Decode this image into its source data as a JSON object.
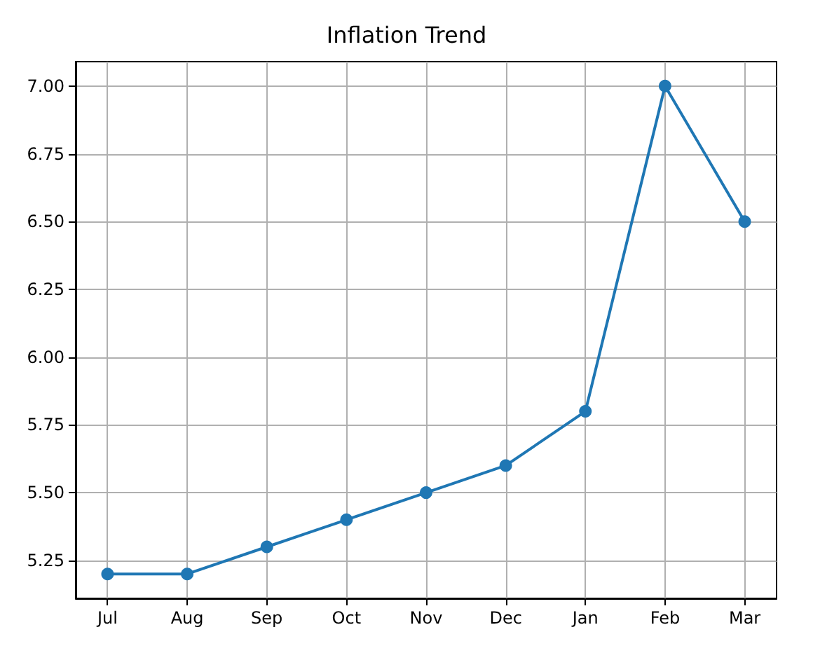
{
  "chart_data": {
    "type": "line",
    "title": "Inflation Trend",
    "categories": [
      "Jul",
      "Aug",
      "Sep",
      "Oct",
      "Nov",
      "Dec",
      "Jan",
      "Feb",
      "Mar"
    ],
    "series": [
      {
        "color": "#1f77b4",
        "values": [
          5.2,
          5.2,
          5.3,
          5.4,
          5.5,
          5.6,
          5.8,
          7.0,
          6.5
        ]
      }
    ],
    "ylim": [
      5.11,
      7.09
    ],
    "yticks": [
      {
        "value": 5.25,
        "label": "5.25"
      },
      {
        "value": 5.5,
        "label": "5.50"
      },
      {
        "value": 5.75,
        "label": "5.75"
      },
      {
        "value": 6.0,
        "label": "6.00"
      },
      {
        "value": 6.25,
        "label": "6.25"
      },
      {
        "value": 6.5,
        "label": "6.50"
      },
      {
        "value": 6.75,
        "label": "6.75"
      },
      {
        "value": 7.0,
        "label": "7.00"
      }
    ],
    "grid": true,
    "marker": "circle",
    "line_style": "solid"
  }
}
